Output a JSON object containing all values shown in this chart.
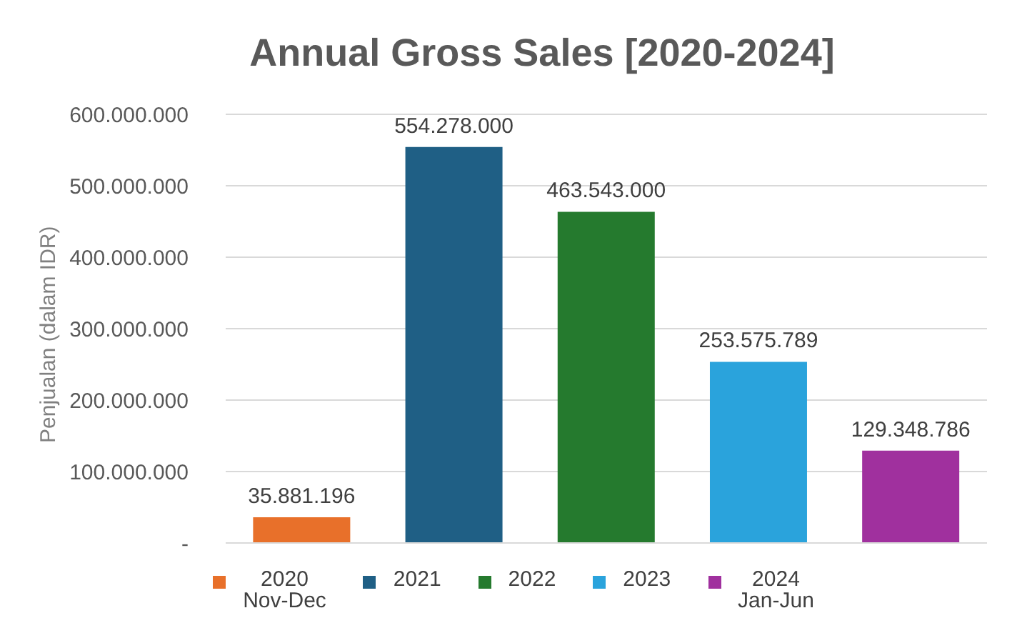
{
  "chart_data": {
    "type": "bar",
    "title": "Annual Gross Sales [2020-2024]",
    "ylabel": "Penjualan (dalam IDR)",
    "categories": [
      null,
      null,
      null,
      null,
      null
    ],
    "series": [
      {
        "name": "2020\nNov-Dec",
        "color": "#e8702a",
        "values": [
          35881196,
          null,
          null,
          null,
          null
        ],
        "value_labels": [
          "35.881.196",
          null,
          null,
          null,
          null
        ]
      },
      {
        "name": "2021",
        "color": "#1f5f85",
        "values": [
          null,
          554278000,
          null,
          null,
          null
        ],
        "value_labels": [
          null,
          "554.278.000",
          null,
          null,
          null
        ]
      },
      {
        "name": "2022",
        "color": "#257a2e",
        "values": [
          null,
          null,
          463543000,
          null,
          null
        ],
        "value_labels": [
          null,
          null,
          "463.543.000",
          null,
          null
        ]
      },
      {
        "name": "2023",
        "color": "#2aa3dc",
        "values": [
          null,
          null,
          null,
          253575789,
          null
        ],
        "value_labels": [
          null,
          null,
          null,
          "253.575.789",
          null
        ]
      },
      {
        "name": "2024\nJan-Jun",
        "color": "#a0309e",
        "values": [
          null,
          null,
          null,
          null,
          129348786
        ],
        "value_labels": [
          null,
          null,
          null,
          null,
          "129.348.786"
        ]
      }
    ],
    "ylim": [
      0,
      600000000
    ],
    "yticks": [
      {
        "value": 0,
        "label": "-"
      },
      {
        "value": 100000000,
        "label": "100.000.000"
      },
      {
        "value": 200000000,
        "label": "200.000.000"
      },
      {
        "value": 300000000,
        "label": "300.000.000"
      },
      {
        "value": 400000000,
        "label": "400.000.000"
      },
      {
        "value": 500000000,
        "label": "500.000.000"
      },
      {
        "value": 600000000,
        "label": "600.000.000"
      }
    ],
    "grid": "y",
    "legend": "bottom"
  }
}
